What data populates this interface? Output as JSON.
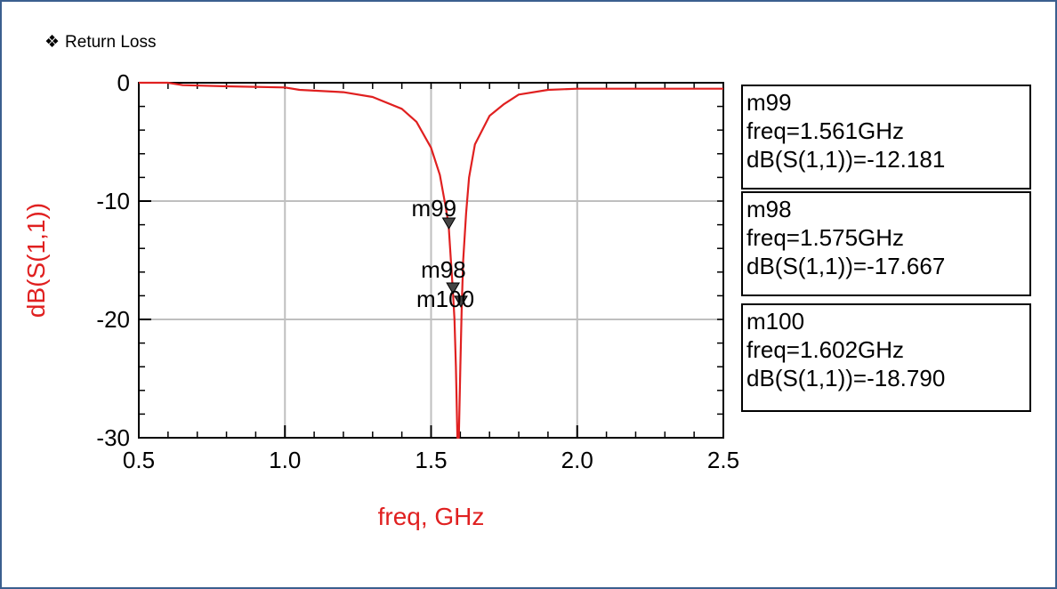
{
  "heading": {
    "bullet": "❖",
    "text": "Return Loss"
  },
  "chart_data": {
    "type": "line",
    "title": "",
    "xlabel": "freq, GHz",
    "ylabel": "dB(S(1,1))",
    "xlim": [
      0.5,
      2.5
    ],
    "ylim": [
      -30,
      0
    ],
    "xticks": [
      "0.5",
      "1.0",
      "1.5",
      "2.0",
      "2.5"
    ],
    "yticks": [
      "0",
      "-10",
      "-20",
      "-30"
    ],
    "grid": true,
    "series": [
      {
        "color": "#e02020",
        "x": [
          0.5,
          0.6,
          0.65,
          0.8,
          1.0,
          1.05,
          1.2,
          1.3,
          1.4,
          1.45,
          1.5,
          1.53,
          1.55,
          1.56,
          1.565,
          1.575,
          1.58,
          1.585,
          1.59,
          1.595,
          1.6,
          1.605,
          1.61,
          1.62,
          1.63,
          1.65,
          1.7,
          1.75,
          1.8,
          1.9,
          2.0,
          2.2,
          2.5
        ],
        "y": [
          0,
          0,
          -0.2,
          -0.3,
          -0.4,
          -0.6,
          -0.8,
          -1.2,
          -2.2,
          -3.3,
          -5.5,
          -7.8,
          -10.5,
          -12.0,
          -14.0,
          -17.7,
          -20.0,
          -24.0,
          -30.0,
          -30.0,
          -24.0,
          -18.8,
          -15.0,
          -11.0,
          -8.0,
          -5.2,
          -2.8,
          -1.8,
          -1.0,
          -0.6,
          -0.5,
          -0.5,
          -0.5
        ]
      }
    ],
    "markers": [
      {
        "name": "m99",
        "freq": 1.561,
        "value": -12.181
      },
      {
        "name": "m98",
        "freq": 1.575,
        "value": -17.667
      },
      {
        "name": "m100",
        "freq": 1.602,
        "value": -18.79
      }
    ]
  },
  "marker_boxes": [
    {
      "name": "m99",
      "freq_text": "freq=1.561GHz",
      "value_text": "dB(S(1,1))=-12.181"
    },
    {
      "name": "m98",
      "freq_text": "freq=1.575GHz",
      "value_text": "dB(S(1,1))=-17.667"
    },
    {
      "name": "m100",
      "freq_text": "freq=1.602GHz",
      "value_text": "dB(S(1,1))=-18.790"
    }
  ],
  "colors": {
    "curve": "#e02020",
    "axis_label": "#e02020",
    "grid": "#bfbfbf",
    "frame": "#3b5f8f"
  }
}
